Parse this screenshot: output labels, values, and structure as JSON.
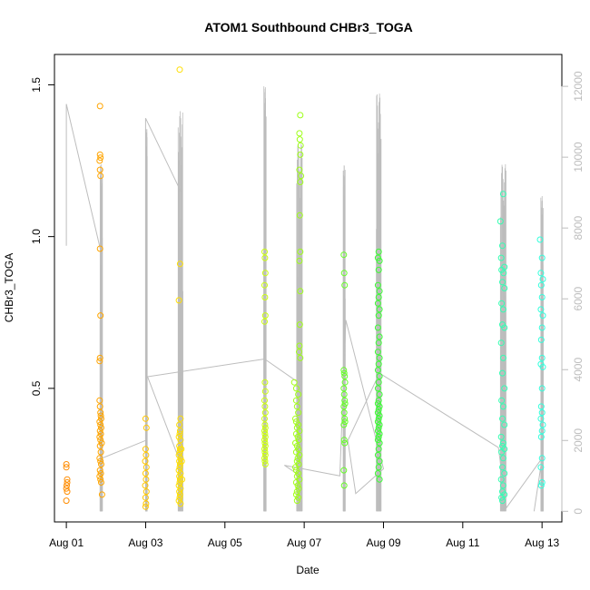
{
  "chart_data": {
    "type": "scatter",
    "title": "ATOM1 Southbound CHBr3_TOGA",
    "xlabel": "Date",
    "ylabel": "CHBr3_TOGA",
    "x_ticks": [
      "Aug 01",
      "Aug 03",
      "Aug 05",
      "Aug 07",
      "Aug 09",
      "Aug 11",
      "Aug 13"
    ],
    "y_ticks": [
      "0.5",
      "1.0",
      "1.5"
    ],
    "y2_ticks": [
      "0",
      "2000",
      "4000",
      "6000",
      "8000",
      "10000",
      "12000"
    ],
    "xlim_days": [
      0.7,
      13.5
    ],
    "ylim": [
      0.06,
      1.6
    ],
    "y2lim": [
      -300,
      12900
    ],
    "point_color_ramp": [
      "#ff8c00",
      "#ffff00",
      "#33ff33",
      "#33ffdd"
    ],
    "altitude_line_color": "#bdbdbd",
    "grid": false,
    "legend": "none",
    "series": [
      {
        "points": [
          [
            1.0,
            0.25
          ],
          [
            1.0,
            0.24
          ],
          [
            1.02,
            0.2
          ],
          [
            1.02,
            0.19
          ],
          [
            1.01,
            0.18
          ],
          [
            1.0,
            0.17
          ],
          [
            1.02,
            0.16
          ],
          [
            1.0,
            0.13
          ],
          [
            1.85,
            1.43
          ],
          [
            1.85,
            1.27
          ],
          [
            1.86,
            1.26
          ],
          [
            1.84,
            1.25
          ],
          [
            1.85,
            1.22
          ],
          [
            1.86,
            1.2
          ],
          [
            1.85,
            0.96
          ],
          [
            1.86,
            0.74
          ],
          [
            1.85,
            0.6
          ],
          [
            1.84,
            0.59
          ],
          [
            1.84,
            0.46
          ],
          [
            1.85,
            0.44
          ],
          [
            1.86,
            0.42
          ],
          [
            1.87,
            0.41
          ],
          [
            1.88,
            0.4
          ],
          [
            1.84,
            0.39
          ],
          [
            1.86,
            0.38
          ],
          [
            1.88,
            0.37
          ],
          [
            1.85,
            0.36
          ],
          [
            1.87,
            0.35
          ],
          [
            1.84,
            0.34
          ],
          [
            1.86,
            0.33
          ],
          [
            1.89,
            0.32
          ],
          [
            1.85,
            0.31
          ],
          [
            1.87,
            0.29
          ],
          [
            1.84,
            0.27
          ],
          [
            1.86,
            0.26
          ],
          [
            1.88,
            0.25
          ],
          [
            1.85,
            0.23
          ],
          [
            1.87,
            0.22
          ],
          [
            1.84,
            0.21
          ],
          [
            1.86,
            0.2
          ],
          [
            1.88,
            0.19
          ],
          [
            1.9,
            0.15
          ],
          [
            3.0,
            0.4
          ],
          [
            3.02,
            0.37
          ],
          [
            3.0,
            0.3
          ],
          [
            3.01,
            0.28
          ],
          [
            2.99,
            0.26
          ],
          [
            3.02,
            0.24
          ],
          [
            3.0,
            0.22
          ],
          [
            3.01,
            0.2
          ],
          [
            2.99,
            0.18
          ],
          [
            3.02,
            0.16
          ],
          [
            3.0,
            0.14
          ],
          [
            3.01,
            0.12
          ],
          [
            3.0,
            0.11
          ],
          [
            3.86,
            1.55
          ],
          [
            3.87,
            0.91
          ],
          [
            3.84,
            0.79
          ],
          [
            3.88,
            0.4
          ],
          [
            3.85,
            0.38
          ],
          [
            3.87,
            0.36
          ],
          [
            3.86,
            0.35
          ],
          [
            3.84,
            0.34
          ],
          [
            3.88,
            0.33
          ],
          [
            3.85,
            0.31
          ],
          [
            3.87,
            0.3
          ],
          [
            3.86,
            0.29
          ],
          [
            3.84,
            0.28
          ],
          [
            3.88,
            0.27
          ],
          [
            3.85,
            0.26
          ],
          [
            3.87,
            0.25
          ],
          [
            3.86,
            0.24
          ],
          [
            3.84,
            0.23
          ],
          [
            3.88,
            0.22
          ],
          [
            3.85,
            0.21
          ],
          [
            3.87,
            0.2
          ],
          [
            3.86,
            0.19
          ],
          [
            3.84,
            0.18
          ],
          [
            3.88,
            0.17
          ],
          [
            3.85,
            0.16
          ],
          [
            3.87,
            0.15
          ],
          [
            3.86,
            0.14
          ],
          [
            3.84,
            0.13
          ],
          [
            3.88,
            0.12
          ],
          [
            3.9,
            0.3
          ],
          [
            3.91,
            0.26
          ],
          [
            3.92,
            0.2
          ],
          [
            6.0,
            0.95
          ],
          [
            6.01,
            0.93
          ],
          [
            6.02,
            0.88
          ],
          [
            6.0,
            0.84
          ],
          [
            6.01,
            0.8
          ],
          [
            6.02,
            0.74
          ],
          [
            6.0,
            0.72
          ],
          [
            6.01,
            0.52
          ],
          [
            6.02,
            0.49
          ],
          [
            6.0,
            0.46
          ],
          [
            6.01,
            0.44
          ],
          [
            6.02,
            0.42
          ],
          [
            6.0,
            0.4
          ],
          [
            6.01,
            0.38
          ],
          [
            6.02,
            0.37
          ],
          [
            6.0,
            0.36
          ],
          [
            6.01,
            0.35
          ],
          [
            6.02,
            0.34
          ],
          [
            6.0,
            0.33
          ],
          [
            6.01,
            0.32
          ],
          [
            6.02,
            0.31
          ],
          [
            6.0,
            0.3
          ],
          [
            6.01,
            0.29
          ],
          [
            6.02,
            0.28
          ],
          [
            6.0,
            0.27
          ],
          [
            6.01,
            0.26
          ],
          [
            6.02,
            0.25
          ],
          [
            6.9,
            1.4
          ],
          [
            6.88,
            1.34
          ],
          [
            6.89,
            1.32
          ],
          [
            6.91,
            1.3
          ],
          [
            6.9,
            1.27
          ],
          [
            6.88,
            1.22
          ],
          [
            6.92,
            1.2
          ],
          [
            6.9,
            1.18
          ],
          [
            6.89,
            1.07
          ],
          [
            6.9,
            0.95
          ],
          [
            6.88,
            0.92
          ],
          [
            6.9,
            0.82
          ],
          [
            6.89,
            0.71
          ],
          [
            6.88,
            0.64
          ],
          [
            6.87,
            0.62
          ],
          [
            6.9,
            0.6
          ],
          [
            6.75,
            0.52
          ],
          [
            6.8,
            0.5
          ],
          [
            6.85,
            0.48
          ],
          [
            6.8,
            0.46
          ],
          [
            6.82,
            0.44
          ],
          [
            6.85,
            0.42
          ],
          [
            6.78,
            0.4
          ],
          [
            6.8,
            0.39
          ],
          [
            6.85,
            0.38
          ],
          [
            6.82,
            0.37
          ],
          [
            6.88,
            0.36
          ],
          [
            6.8,
            0.35
          ],
          [
            6.84,
            0.34
          ],
          [
            6.86,
            0.33
          ],
          [
            6.78,
            0.32
          ],
          [
            6.82,
            0.31
          ],
          [
            6.85,
            0.3
          ],
          [
            6.8,
            0.29
          ],
          [
            6.88,
            0.28
          ],
          [
            6.84,
            0.27
          ],
          [
            6.82,
            0.26
          ],
          [
            6.86,
            0.25
          ],
          [
            6.78,
            0.24
          ],
          [
            6.8,
            0.23
          ],
          [
            6.85,
            0.22
          ],
          [
            6.82,
            0.21
          ],
          [
            6.88,
            0.2
          ],
          [
            6.8,
            0.19
          ],
          [
            6.84,
            0.18
          ],
          [
            6.86,
            0.17
          ],
          [
            6.82,
            0.16
          ],
          [
            6.8,
            0.15
          ],
          [
            6.85,
            0.14
          ],
          [
            6.82,
            0.13
          ],
          [
            8.0,
            0.94
          ],
          [
            8.01,
            0.88
          ],
          [
            8.02,
            0.84
          ],
          [
            8.0,
            0.56
          ],
          [
            8.01,
            0.55
          ],
          [
            8.02,
            0.54
          ],
          [
            8.03,
            0.52
          ],
          [
            8.0,
            0.5
          ],
          [
            8.01,
            0.48
          ],
          [
            8.02,
            0.46
          ],
          [
            8.03,
            0.45
          ],
          [
            8.0,
            0.44
          ],
          [
            8.01,
            0.42
          ],
          [
            8.02,
            0.4
          ],
          [
            8.03,
            0.39
          ],
          [
            8.0,
            0.38
          ],
          [
            8.01,
            0.33
          ],
          [
            8.02,
            0.32
          ],
          [
            8.0,
            0.23
          ],
          [
            8.01,
            0.18
          ],
          [
            8.88,
            0.95
          ],
          [
            8.86,
            0.93
          ],
          [
            8.9,
            0.92
          ],
          [
            8.88,
            0.89
          ],
          [
            8.86,
            0.84
          ],
          [
            8.9,
            0.82
          ],
          [
            8.88,
            0.8
          ],
          [
            8.86,
            0.78
          ],
          [
            8.9,
            0.76
          ],
          [
            8.88,
            0.74
          ],
          [
            8.86,
            0.7
          ],
          [
            8.9,
            0.67
          ],
          [
            8.88,
            0.65
          ],
          [
            8.86,
            0.62
          ],
          [
            8.9,
            0.6
          ],
          [
            8.88,
            0.58
          ],
          [
            8.86,
            0.56
          ],
          [
            8.9,
            0.54
          ],
          [
            8.88,
            0.52
          ],
          [
            8.86,
            0.5
          ],
          [
            8.9,
            0.48
          ],
          [
            8.88,
            0.46
          ],
          [
            8.86,
            0.45
          ],
          [
            8.9,
            0.44
          ],
          [
            8.88,
            0.43
          ],
          [
            8.86,
            0.42
          ],
          [
            8.9,
            0.41
          ],
          [
            8.88,
            0.4
          ],
          [
            8.86,
            0.39
          ],
          [
            8.9,
            0.38
          ],
          [
            8.88,
            0.37
          ],
          [
            8.86,
            0.36
          ],
          [
            8.9,
            0.35
          ],
          [
            8.88,
            0.34
          ],
          [
            8.86,
            0.33
          ],
          [
            8.9,
            0.32
          ],
          [
            8.88,
            0.3
          ],
          [
            8.86,
            0.28
          ],
          [
            8.9,
            0.26
          ],
          [
            8.88,
            0.24
          ],
          [
            8.86,
            0.22
          ],
          [
            8.9,
            0.2
          ],
          [
            11.95,
            1.05
          ],
          [
            12.02,
            1.14
          ],
          [
            12.0,
            0.97
          ],
          [
            11.97,
            0.93
          ],
          [
            12.05,
            0.9
          ],
          [
            11.98,
            0.89
          ],
          [
            12.03,
            0.88
          ],
          [
            12.0,
            0.85
          ],
          [
            12.05,
            0.83
          ],
          [
            11.98,
            0.78
          ],
          [
            12.02,
            0.76
          ],
          [
            12.0,
            0.71
          ],
          [
            12.05,
            0.7
          ],
          [
            11.97,
            0.65
          ],
          [
            12.02,
            0.6
          ],
          [
            12.0,
            0.55
          ],
          [
            12.05,
            0.5
          ],
          [
            11.98,
            0.46
          ],
          [
            12.02,
            0.44
          ],
          [
            12.0,
            0.4
          ],
          [
            12.05,
            0.38
          ],
          [
            11.97,
            0.34
          ],
          [
            12.02,
            0.32
          ],
          [
            12.0,
            0.31
          ],
          [
            12.05,
            0.3
          ],
          [
            11.98,
            0.29
          ],
          [
            12.02,
            0.27
          ],
          [
            12.0,
            0.24
          ],
          [
            12.05,
            0.22
          ],
          [
            11.97,
            0.2
          ],
          [
            12.02,
            0.18
          ],
          [
            12.0,
            0.16
          ],
          [
            12.05,
            0.15
          ],
          [
            11.98,
            0.14
          ],
          [
            12.0,
            0.13
          ],
          [
            12.95,
            0.99
          ],
          [
            13.0,
            0.93
          ],
          [
            12.97,
            0.88
          ],
          [
            13.02,
            0.86
          ],
          [
            12.98,
            0.84
          ],
          [
            13.0,
            0.8
          ],
          [
            12.97,
            0.76
          ],
          [
            13.02,
            0.74
          ],
          [
            13.0,
            0.7
          ],
          [
            12.98,
            0.66
          ],
          [
            13.0,
            0.6
          ],
          [
            12.97,
            0.58
          ],
          [
            13.02,
            0.57
          ],
          [
            13.0,
            0.5
          ],
          [
            12.98,
            0.44
          ],
          [
            13.0,
            0.42
          ],
          [
            12.97,
            0.4
          ],
          [
            13.02,
            0.38
          ],
          [
            13.0,
            0.36
          ],
          [
            12.98,
            0.34
          ],
          [
            13.0,
            0.27
          ],
          [
            12.97,
            0.24
          ],
          [
            13.0,
            0.19
          ],
          [
            12.98,
            0.18
          ]
        ]
      }
    ],
    "altitude_spikes": [
      {
        "center": 1.88,
        "width": 0.06,
        "max": 9800
      },
      {
        "center": 3.02,
        "width": 0.04,
        "max": 10800
      },
      {
        "center": 3.88,
        "width": 0.12,
        "max": 11300
      },
      {
        "center": 6.01,
        "width": 0.06,
        "max": 12000
      },
      {
        "center": 6.88,
        "width": 0.14,
        "max": 10400
      },
      {
        "center": 8.01,
        "width": 0.05,
        "max": 9800
      },
      {
        "center": 8.88,
        "width": 0.12,
        "max": 11800
      },
      {
        "center": 12.02,
        "width": 0.14,
        "max": 9800
      },
      {
        "center": 13.0,
        "width": 0.06,
        "max": 8900
      }
    ],
    "altitude_track": [
      [
        1.0,
        7500
      ],
      [
        1.0,
        11500
      ],
      [
        1.9,
        7200
      ],
      [
        1.9,
        1500
      ],
      [
        3.0,
        2000
      ],
      [
        3.0,
        11100
      ],
      [
        3.9,
        9000
      ],
      [
        3.9,
        1300
      ],
      [
        3.05,
        3800
      ],
      [
        6.0,
        4300
      ],
      [
        6.9,
        3600
      ],
      [
        6.9,
        1000
      ],
      [
        6.5,
        1300
      ],
      [
        7.9,
        1000
      ],
      [
        8.05,
        5400
      ],
      [
        9.0,
        1200
      ],
      [
        8.3,
        500
      ],
      [
        8.1,
        2000
      ],
      [
        8.9,
        3900
      ],
      [
        11.9,
        1800
      ],
      [
        12.1,
        100
      ],
      [
        13.0,
        1500
      ],
      [
        12.8,
        0
      ]
    ]
  }
}
